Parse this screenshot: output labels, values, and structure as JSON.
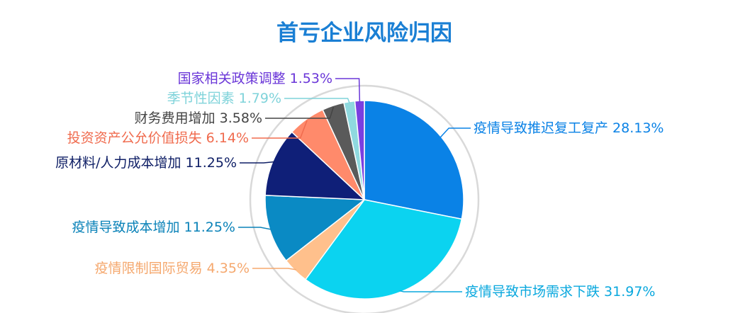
{
  "chart_data": {
    "type": "pie",
    "title": "首亏企业风险归因",
    "title_color": "#1A7FD4",
    "ring_color": "#D9D9D9",
    "slices": [
      {
        "label": "疫情导致推迟复工复产",
        "value": 28.13,
        "display": "28.13%",
        "color": "#0A82E6",
        "label_color": "#0A82E6"
      },
      {
        "label": "疫情导致市场需求下跌",
        "value": 31.97,
        "display": "31.97%",
        "color": "#0BD3F0",
        "label_color": "#0AA8DE"
      },
      {
        "label": "疫情限制国际贸易",
        "value": 4.35,
        "display": "4.35%",
        "color": "#FFC08C",
        "label_color": "#F5A86E"
      },
      {
        "label": "疫情导致成本增加",
        "value": 11.25,
        "display": "11.25%",
        "color": "#0A8AC4",
        "label_color": "#0A82B8"
      },
      {
        "label": "原材料/人力成本增加",
        "value": 11.25,
        "display": "11.25%",
        "color": "#0F1F78",
        "label_color": "#0F1F66"
      },
      {
        "label": "投资资产公允价值损失",
        "value": 6.14,
        "display": "6.14%",
        "color": "#FF8A6B",
        "label_color": "#F06B4E"
      },
      {
        "label": "财务费用增加",
        "value": 3.58,
        "display": "3.58%",
        "color": "#5A5A5A",
        "label_color": "#444444"
      },
      {
        "label": "季节性因素",
        "value": 1.79,
        "display": "1.79%",
        "color": "#8FD9DF",
        "label_color": "#7FD3DA"
      },
      {
        "label": "国家相关政策调整",
        "value": 1.53,
        "display": "1.53%",
        "color": "#7A3FE0",
        "label_color": "#6A36D8"
      }
    ]
  }
}
